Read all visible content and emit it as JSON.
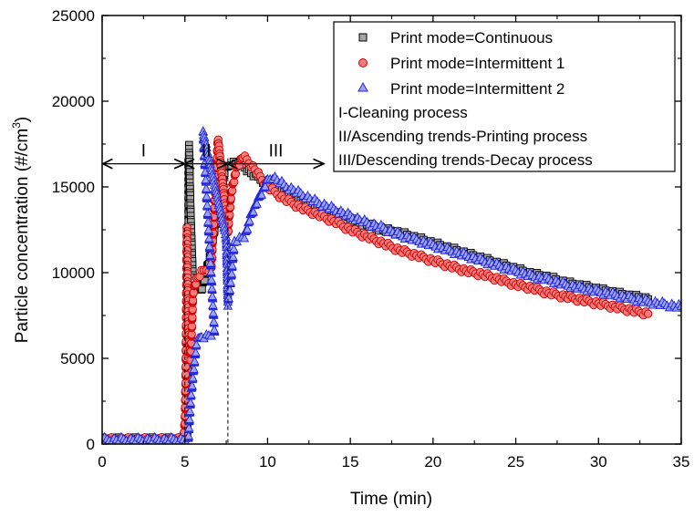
{
  "chart_data": {
    "type": "scatter",
    "xlabel": "Time (min)",
    "ylabel": {
      "main": "Particle concentration (#/cm",
      "superscript": "3",
      "close": ")"
    },
    "xlim": [
      0,
      35
    ],
    "ylim": [
      0,
      25000
    ],
    "x_ticks": [
      "0",
      "5",
      "10",
      "15",
      "20",
      "25",
      "30",
      "35"
    ],
    "y_ticks": [
      "0",
      "5000",
      "10000",
      "15000",
      "20000",
      "25000"
    ],
    "grid": false,
    "legend_position": "top-right",
    "legend_entries": [
      "Print mode=Continuous",
      "Print mode=Intermittent 1",
      "Print mode=Intermittent 2"
    ],
    "legend_notes": [
      "I-Cleaning process",
      "II/Ascending trends-Printing process",
      "III/Descending trends-Decay process"
    ],
    "region_labels": [
      "I",
      "II",
      "III"
    ],
    "region_boundaries_x": [
      5.0,
      7.6
    ],
    "region_arrow_y": 16350,
    "region_arrow_x_range": [
      0,
      13.4
    ],
    "series": [
      {
        "name": "Print mode=Continuous",
        "marker": "square",
        "fill": "#a6a6a6",
        "stroke": "#000000",
        "points": [
          [
            0.0,
            250
          ],
          [
            4.9,
            250
          ],
          [
            5.05,
            200
          ],
          [
            5.15,
            600
          ],
          [
            5.25,
            17450
          ],
          [
            5.35,
            13400
          ],
          [
            5.5,
            9300
          ],
          [
            6.0,
            9000
          ],
          [
            6.5,
            10800
          ],
          [
            7.0,
            13800
          ],
          [
            7.4,
            15900
          ],
          [
            7.8,
            16400
          ],
          [
            8.5,
            16300
          ],
          [
            9.0,
            15800
          ],
          [
            10.0,
            15200
          ],
          [
            11.0,
            14700
          ],
          [
            12.0,
            14200
          ],
          [
            13.0,
            13800
          ],
          [
            14.0,
            13500
          ],
          [
            15.0,
            13100
          ],
          [
            16.0,
            12800
          ],
          [
            17.0,
            12500
          ],
          [
            18.0,
            12300
          ],
          [
            19.0,
            12000
          ],
          [
            20.0,
            11700
          ],
          [
            21.0,
            11400
          ],
          [
            22.0,
            11100
          ],
          [
            23.0,
            10800
          ],
          [
            24.0,
            10500
          ],
          [
            25.0,
            10200
          ],
          [
            26.0,
            9900
          ],
          [
            27.0,
            9700
          ],
          [
            28.0,
            9400
          ],
          [
            29.0,
            9200
          ],
          [
            30.0,
            9000
          ],
          [
            31.0,
            8800
          ],
          [
            32.0,
            8600
          ],
          [
            33.0,
            8450
          ]
        ]
      },
      {
        "name": "Print mode=Intermittent 1",
        "marker": "circle",
        "fill": "#f07c7c",
        "stroke": "#d40000",
        "points": [
          [
            0.0,
            250
          ],
          [
            4.9,
            250
          ],
          [
            5.0,
            1200
          ],
          [
            5.05,
            3800
          ],
          [
            5.1,
            9700
          ],
          [
            5.12,
            12600
          ],
          [
            5.2,
            7000
          ],
          [
            5.35,
            5000
          ],
          [
            5.5,
            8800
          ],
          [
            5.7,
            9600
          ],
          [
            6.0,
            10000
          ],
          [
            6.3,
            10200
          ],
          [
            6.6,
            10200
          ],
          [
            7.0,
            17800
          ],
          [
            7.6,
            12300
          ],
          [
            7.8,
            14600
          ],
          [
            8.1,
            16000
          ],
          [
            8.5,
            16800
          ],
          [
            9.0,
            16300
          ],
          [
            10.0,
            15000
          ],
          [
            11.0,
            14300
          ],
          [
            12.0,
            13800
          ],
          [
            13.0,
            13400
          ],
          [
            14.0,
            13000
          ],
          [
            15.0,
            12500
          ],
          [
            16.0,
            12100
          ],
          [
            17.0,
            11700
          ],
          [
            18.0,
            11300
          ],
          [
            19.0,
            11000
          ],
          [
            20.0,
            10700
          ],
          [
            21.0,
            10400
          ],
          [
            22.0,
            10100
          ],
          [
            23.0,
            9900
          ],
          [
            24.0,
            9600
          ],
          [
            25.0,
            9300
          ],
          [
            26.0,
            9100
          ],
          [
            27.0,
            8800
          ],
          [
            28.0,
            8600
          ],
          [
            29.0,
            8400
          ],
          [
            30.0,
            8200
          ],
          [
            31.0,
            8000
          ],
          [
            32.0,
            7800
          ],
          [
            33.0,
            7600
          ]
        ]
      },
      {
        "name": "Print mode=Intermittent 2",
        "marker": "triangle",
        "fill": "#9da2f2",
        "stroke": "#1f24d6",
        "points": [
          [
            0.0,
            250
          ],
          [
            4.9,
            250
          ],
          [
            5.2,
            200
          ],
          [
            5.35,
            2700
          ],
          [
            5.5,
            4100
          ],
          [
            5.7,
            5900
          ],
          [
            6.0,
            6300
          ],
          [
            6.3,
            6300
          ],
          [
            6.6,
            6400
          ],
          [
            6.8,
            6400
          ],
          [
            6.1,
            18200
          ],
          [
            7.5,
            12000
          ],
          [
            7.6,
            8200
          ],
          [
            7.8,
            9800
          ],
          [
            8.0,
            11900
          ],
          [
            8.3,
            12000
          ],
          [
            8.6,
            12100
          ],
          [
            9.0,
            13400
          ],
          [
            9.5,
            14400
          ],
          [
            10.0,
            15400
          ],
          [
            10.3,
            15600
          ],
          [
            11.0,
            15100
          ],
          [
            12.0,
            14600
          ],
          [
            13.0,
            14100
          ],
          [
            14.0,
            13700
          ],
          [
            15.0,
            13300
          ],
          [
            16.0,
            12900
          ],
          [
            17.0,
            12600
          ],
          [
            18.0,
            12200
          ],
          [
            19.0,
            11900
          ],
          [
            20.0,
            11600
          ],
          [
            21.0,
            11300
          ],
          [
            22.0,
            11000
          ],
          [
            23.0,
            10700
          ],
          [
            24.0,
            10400
          ],
          [
            25.0,
            10100
          ],
          [
            26.0,
            9800
          ],
          [
            27.0,
            9600
          ],
          [
            28.0,
            9300
          ],
          [
            29.0,
            9100
          ],
          [
            30.0,
            8900
          ],
          [
            31.0,
            8700
          ],
          [
            32.0,
            8500
          ],
          [
            33.0,
            8300
          ],
          [
            34.0,
            8150
          ],
          [
            35.0,
            8000
          ]
        ]
      }
    ]
  }
}
